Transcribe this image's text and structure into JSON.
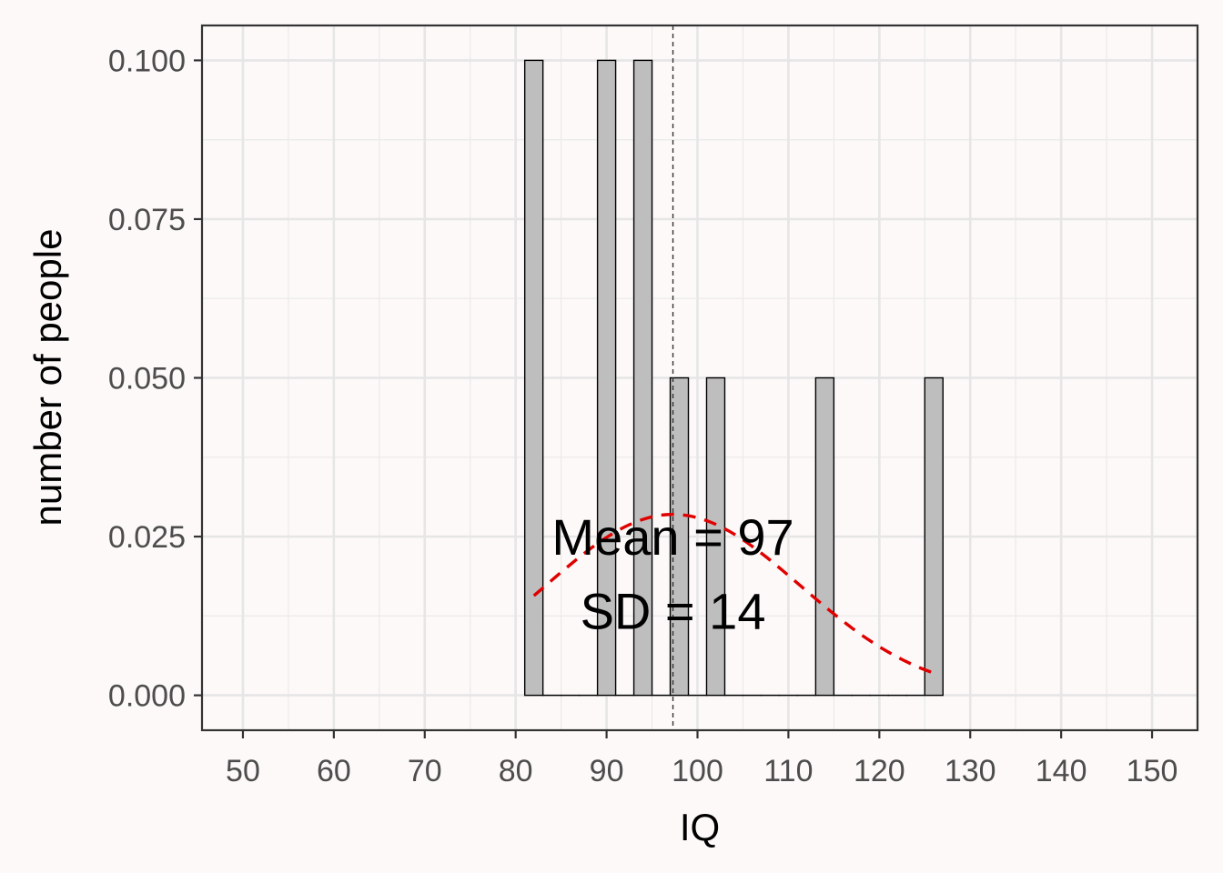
{
  "chart_data": {
    "type": "bar",
    "xlabel": "IQ",
    "ylabel": "number of people",
    "xlim": [
      45.5,
      155
    ],
    "ylim": [
      -0.0055,
      0.1055
    ],
    "x_ticks": [
      50,
      60,
      70,
      80,
      90,
      100,
      110,
      120,
      130,
      140,
      150
    ],
    "y_ticks": [
      0.0,
      0.025,
      0.05,
      0.075,
      0.1
    ],
    "y_tick_labels": [
      "0.000",
      "0.025",
      "0.050",
      "0.075",
      "0.100"
    ],
    "x_tick_labels": [
      "50",
      "60",
      "70",
      "80",
      "90",
      "100",
      "110",
      "120",
      "130",
      "140",
      "150"
    ],
    "bin_width": 2,
    "bins": [
      {
        "x0": 81,
        "x1": 83,
        "value": 0.1
      },
      {
        "x0": 83,
        "x1": 85,
        "value": 0
      },
      {
        "x0": 85,
        "x1": 87,
        "value": 0
      },
      {
        "x0": 87,
        "x1": 89,
        "value": 0
      },
      {
        "x0": 89,
        "x1": 91,
        "value": 0.1
      },
      {
        "x0": 91,
        "x1": 93,
        "value": 0
      },
      {
        "x0": 93,
        "x1": 95,
        "value": 0.1
      },
      {
        "x0": 95,
        "x1": 97,
        "value": 0
      },
      {
        "x0": 97,
        "x1": 99,
        "value": 0.05
      },
      {
        "x0": 99,
        "x1": 101,
        "value": 0
      },
      {
        "x0": 101,
        "x1": 103,
        "value": 0.05
      },
      {
        "x0": 103,
        "x1": 105,
        "value": 0
      },
      {
        "x0": 105,
        "x1": 107,
        "value": 0
      },
      {
        "x0": 107,
        "x1": 109,
        "value": 0
      },
      {
        "x0": 109,
        "x1": 111,
        "value": 0
      },
      {
        "x0": 111,
        "x1": 113,
        "value": 0
      },
      {
        "x0": 113,
        "x1": 115,
        "value": 0.05
      },
      {
        "x0": 115,
        "x1": 117,
        "value": 0
      },
      {
        "x0": 117,
        "x1": 119,
        "value": 0
      },
      {
        "x0": 119,
        "x1": 121,
        "value": 0
      },
      {
        "x0": 121,
        "x1": 123,
        "value": 0
      },
      {
        "x0": 123,
        "x1": 125,
        "value": 0
      },
      {
        "x0": 125,
        "x1": 127,
        "value": 0.05
      }
    ],
    "mean": 97.3,
    "sd": 14,
    "normal_curve": {
      "from": 82,
      "to": 126,
      "color": "#e00000",
      "style": "dashed"
    },
    "mean_line": {
      "x": 97.3,
      "style": "dotted"
    },
    "annotations": [
      {
        "text": "Mean = 97",
        "x": 97.3,
        "y": 0.025
      },
      {
        "text": "SD = 14",
        "x": 97.3,
        "y": 0.0133
      }
    ],
    "grid": true,
    "legend": "none",
    "bar_fill": "#bebebe",
    "bar_stroke": "#000000"
  }
}
